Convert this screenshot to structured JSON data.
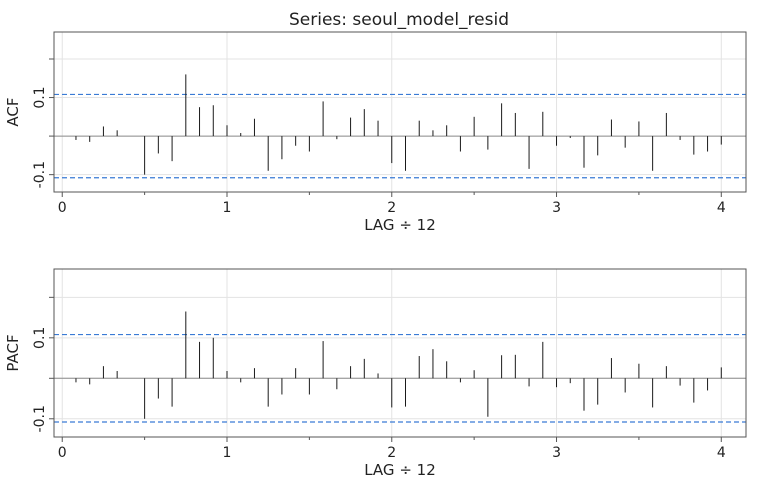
{
  "title": "Series:  seoul_model_resid",
  "chart_data": [
    {
      "type": "bar",
      "ylabel": "ACF",
      "xlabel": "LAG ÷ 12",
      "xlim": [
        -0.05,
        4.15
      ],
      "ylim": [
        -0.145,
        0.27
      ],
      "xticks": [
        0,
        1,
        2,
        3,
        4
      ],
      "yticks": [
        -0.1,
        0.1
      ],
      "ytick_labels": [
        "-0.1",
        "0.1"
      ],
      "ci": 0.108,
      "lags": [
        0.0833,
        0.1667,
        0.25,
        0.3333,
        0.4167,
        0.5,
        0.5833,
        0.6667,
        0.75,
        0.8333,
        0.9167,
        1,
        1.0833,
        1.1667,
        1.25,
        1.3333,
        1.4167,
        1.5,
        1.5833,
        1.6667,
        1.75,
        1.8333,
        1.9167,
        2,
        2.0833,
        2.1667,
        2.25,
        2.3333,
        2.4167,
        2.5,
        2.5833,
        2.6667,
        2.75,
        2.8333,
        2.9167,
        3,
        3.0833,
        3.1667,
        3.25,
        3.3333,
        3.4167,
        3.5,
        3.5833,
        3.6667,
        3.75,
        3.8333,
        3.9167,
        4
      ],
      "values": [
        -0.01,
        -0.015,
        0.025,
        0.015,
        0.0,
        -0.1,
        -0.045,
        -0.065,
        0.16,
        0.075,
        0.08,
        0.028,
        0.008,
        0.045,
        -0.09,
        -0.06,
        -0.025,
        -0.04,
        0.09,
        -0.008,
        0.048,
        0.07,
        0.04,
        -0.07,
        -0.09,
        0.04,
        0.015,
        0.028,
        -0.04,
        0.05,
        -0.035,
        0.085,
        0.06,
        -0.085,
        0.063,
        -0.025,
        -0.005,
        -0.082,
        -0.05,
        0.043,
        -0.03,
        0.038,
        -0.09,
        0.06,
        -0.01,
        -0.048,
        -0.04,
        -0.022
      ]
    },
    {
      "type": "bar",
      "ylabel": "PACF",
      "xlabel": "LAG ÷ 12",
      "xlim": [
        -0.05,
        4.15
      ],
      "ylim": [
        -0.145,
        0.27
      ],
      "xticks": [
        0,
        1,
        2,
        3,
        4
      ],
      "yticks": [
        -0.1,
        0.1
      ],
      "ytick_labels": [
        "-0.1",
        "0.1"
      ],
      "ci": 0.108,
      "lags": [
        0.0833,
        0.1667,
        0.25,
        0.3333,
        0.4167,
        0.5,
        0.5833,
        0.6667,
        0.75,
        0.8333,
        0.9167,
        1,
        1.0833,
        1.1667,
        1.25,
        1.3333,
        1.4167,
        1.5,
        1.5833,
        1.6667,
        1.75,
        1.8333,
        1.9167,
        2,
        2.0833,
        2.1667,
        2.25,
        2.3333,
        2.4167,
        2.5,
        2.5833,
        2.6667,
        2.75,
        2.8333,
        2.9167,
        3,
        3.0833,
        3.1667,
        3.25,
        3.3333,
        3.4167,
        3.5,
        3.5833,
        3.6667,
        3.75,
        3.8333,
        3.9167,
        4
      ],
      "values": [
        -0.01,
        -0.015,
        0.03,
        0.018,
        0.0,
        -0.1,
        -0.05,
        -0.07,
        0.165,
        0.09,
        0.1,
        0.018,
        -0.01,
        0.025,
        -0.07,
        -0.04,
        0.025,
        -0.04,
        0.092,
        -0.027,
        0.03,
        0.048,
        0.012,
        -0.072,
        -0.07,
        0.055,
        0.072,
        0.042,
        -0.01,
        0.02,
        -0.095,
        0.057,
        0.058,
        -0.02,
        0.09,
        -0.022,
        -0.012,
        -0.08,
        -0.065,
        0.05,
        -0.035,
        0.036,
        -0.072,
        0.03,
        -0.018,
        -0.06,
        -0.03,
        0.027
      ]
    }
  ]
}
